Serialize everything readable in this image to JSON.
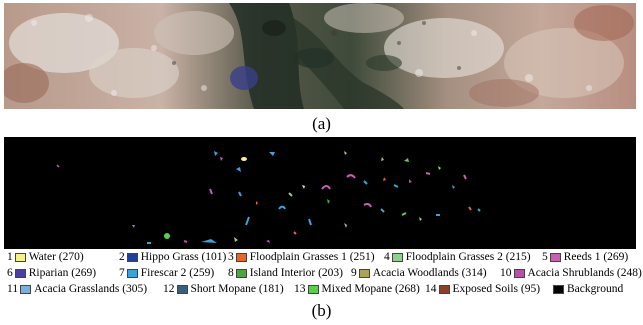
{
  "panel_a": {
    "caption": "(a)"
  },
  "panel_b": {
    "caption": "(b)"
  },
  "legend": [
    {
      "num": "1",
      "label": "Water (270)",
      "color": "#f5f08a"
    },
    {
      "num": "2",
      "label": "Hippo Grass (101)",
      "color": "#1f3f9a"
    },
    {
      "num": "3",
      "label": "Floodplain Grasses 1 (251)",
      "color": "#e8662a"
    },
    {
      "num": "4",
      "label": "Floodplain Grasses 2 (215)",
      "color": "#8fd08a"
    },
    {
      "num": "5",
      "label": "Reeds 1 (269)",
      "color": "#c85fb4"
    },
    {
      "num": "6",
      "label": "Riparian (269)",
      "color": "#4a3f9a"
    },
    {
      "num": "7",
      "label": "Firescar 2 (259)",
      "color": "#3aa3d8"
    },
    {
      "num": "8",
      "label": "Island Interior (203)",
      "color": "#4aa83a"
    },
    {
      "num": "9",
      "label": "Acacia Woodlands (314)",
      "color": "#a8a45a"
    },
    {
      "num": "10",
      "label": "Acacia Shrublands (248)",
      "color": "#b84fa8"
    },
    {
      "num": "11",
      "label": "Acacia Grasslands (305)",
      "color": "#7ab0e0"
    },
    {
      "num": "12",
      "label": "Short Mopane (181)",
      "color": "#3a5f7a"
    },
    {
      "num": "13",
      "label": "Mixed Mopane (268)",
      "color": "#5ad04a"
    },
    {
      "num": "14",
      "label": "Exposed Soils (95)",
      "color": "#8a3f2a"
    },
    {
      "num": "",
      "label": "Background",
      "color": "#000000"
    }
  ]
}
